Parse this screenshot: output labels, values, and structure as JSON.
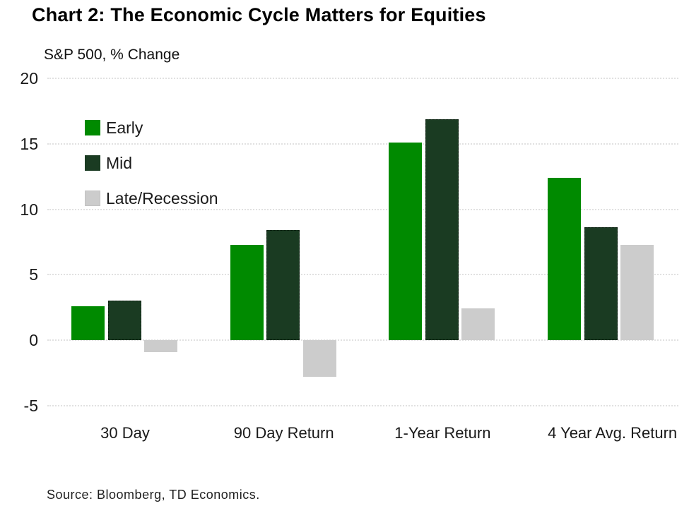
{
  "source": "Source: Bloomberg, TD Economics.",
  "chart_data": {
    "type": "bar",
    "title": "Chart 2: The Economic Cycle Matters for Equities",
    "ylabel": "S&P 500, % Change",
    "xlabel": "",
    "categories": [
      "30 Day",
      "90 Day Return",
      "1-Year Return",
      "4 Year Avg. Return"
    ],
    "series": [
      {
        "name": "Early",
        "color": "#008a00",
        "values": [
          2.6,
          7.3,
          15.1,
          12.4
        ]
      },
      {
        "name": "Mid",
        "color": "#1a3b22",
        "values": [
          3.0,
          8.4,
          16.9,
          8.6
        ]
      },
      {
        "name": "Late/Recession",
        "color": "#cccccc",
        "values": [
          -0.9,
          -2.8,
          2.4,
          7.3
        ]
      }
    ],
    "ylim": [
      -5,
      20
    ],
    "yticks": [
      20,
      15,
      10,
      5,
      0,
      -5
    ],
    "grid": true,
    "legend_position": "top-left",
    "gridline_color": "#e1e1e1"
  }
}
